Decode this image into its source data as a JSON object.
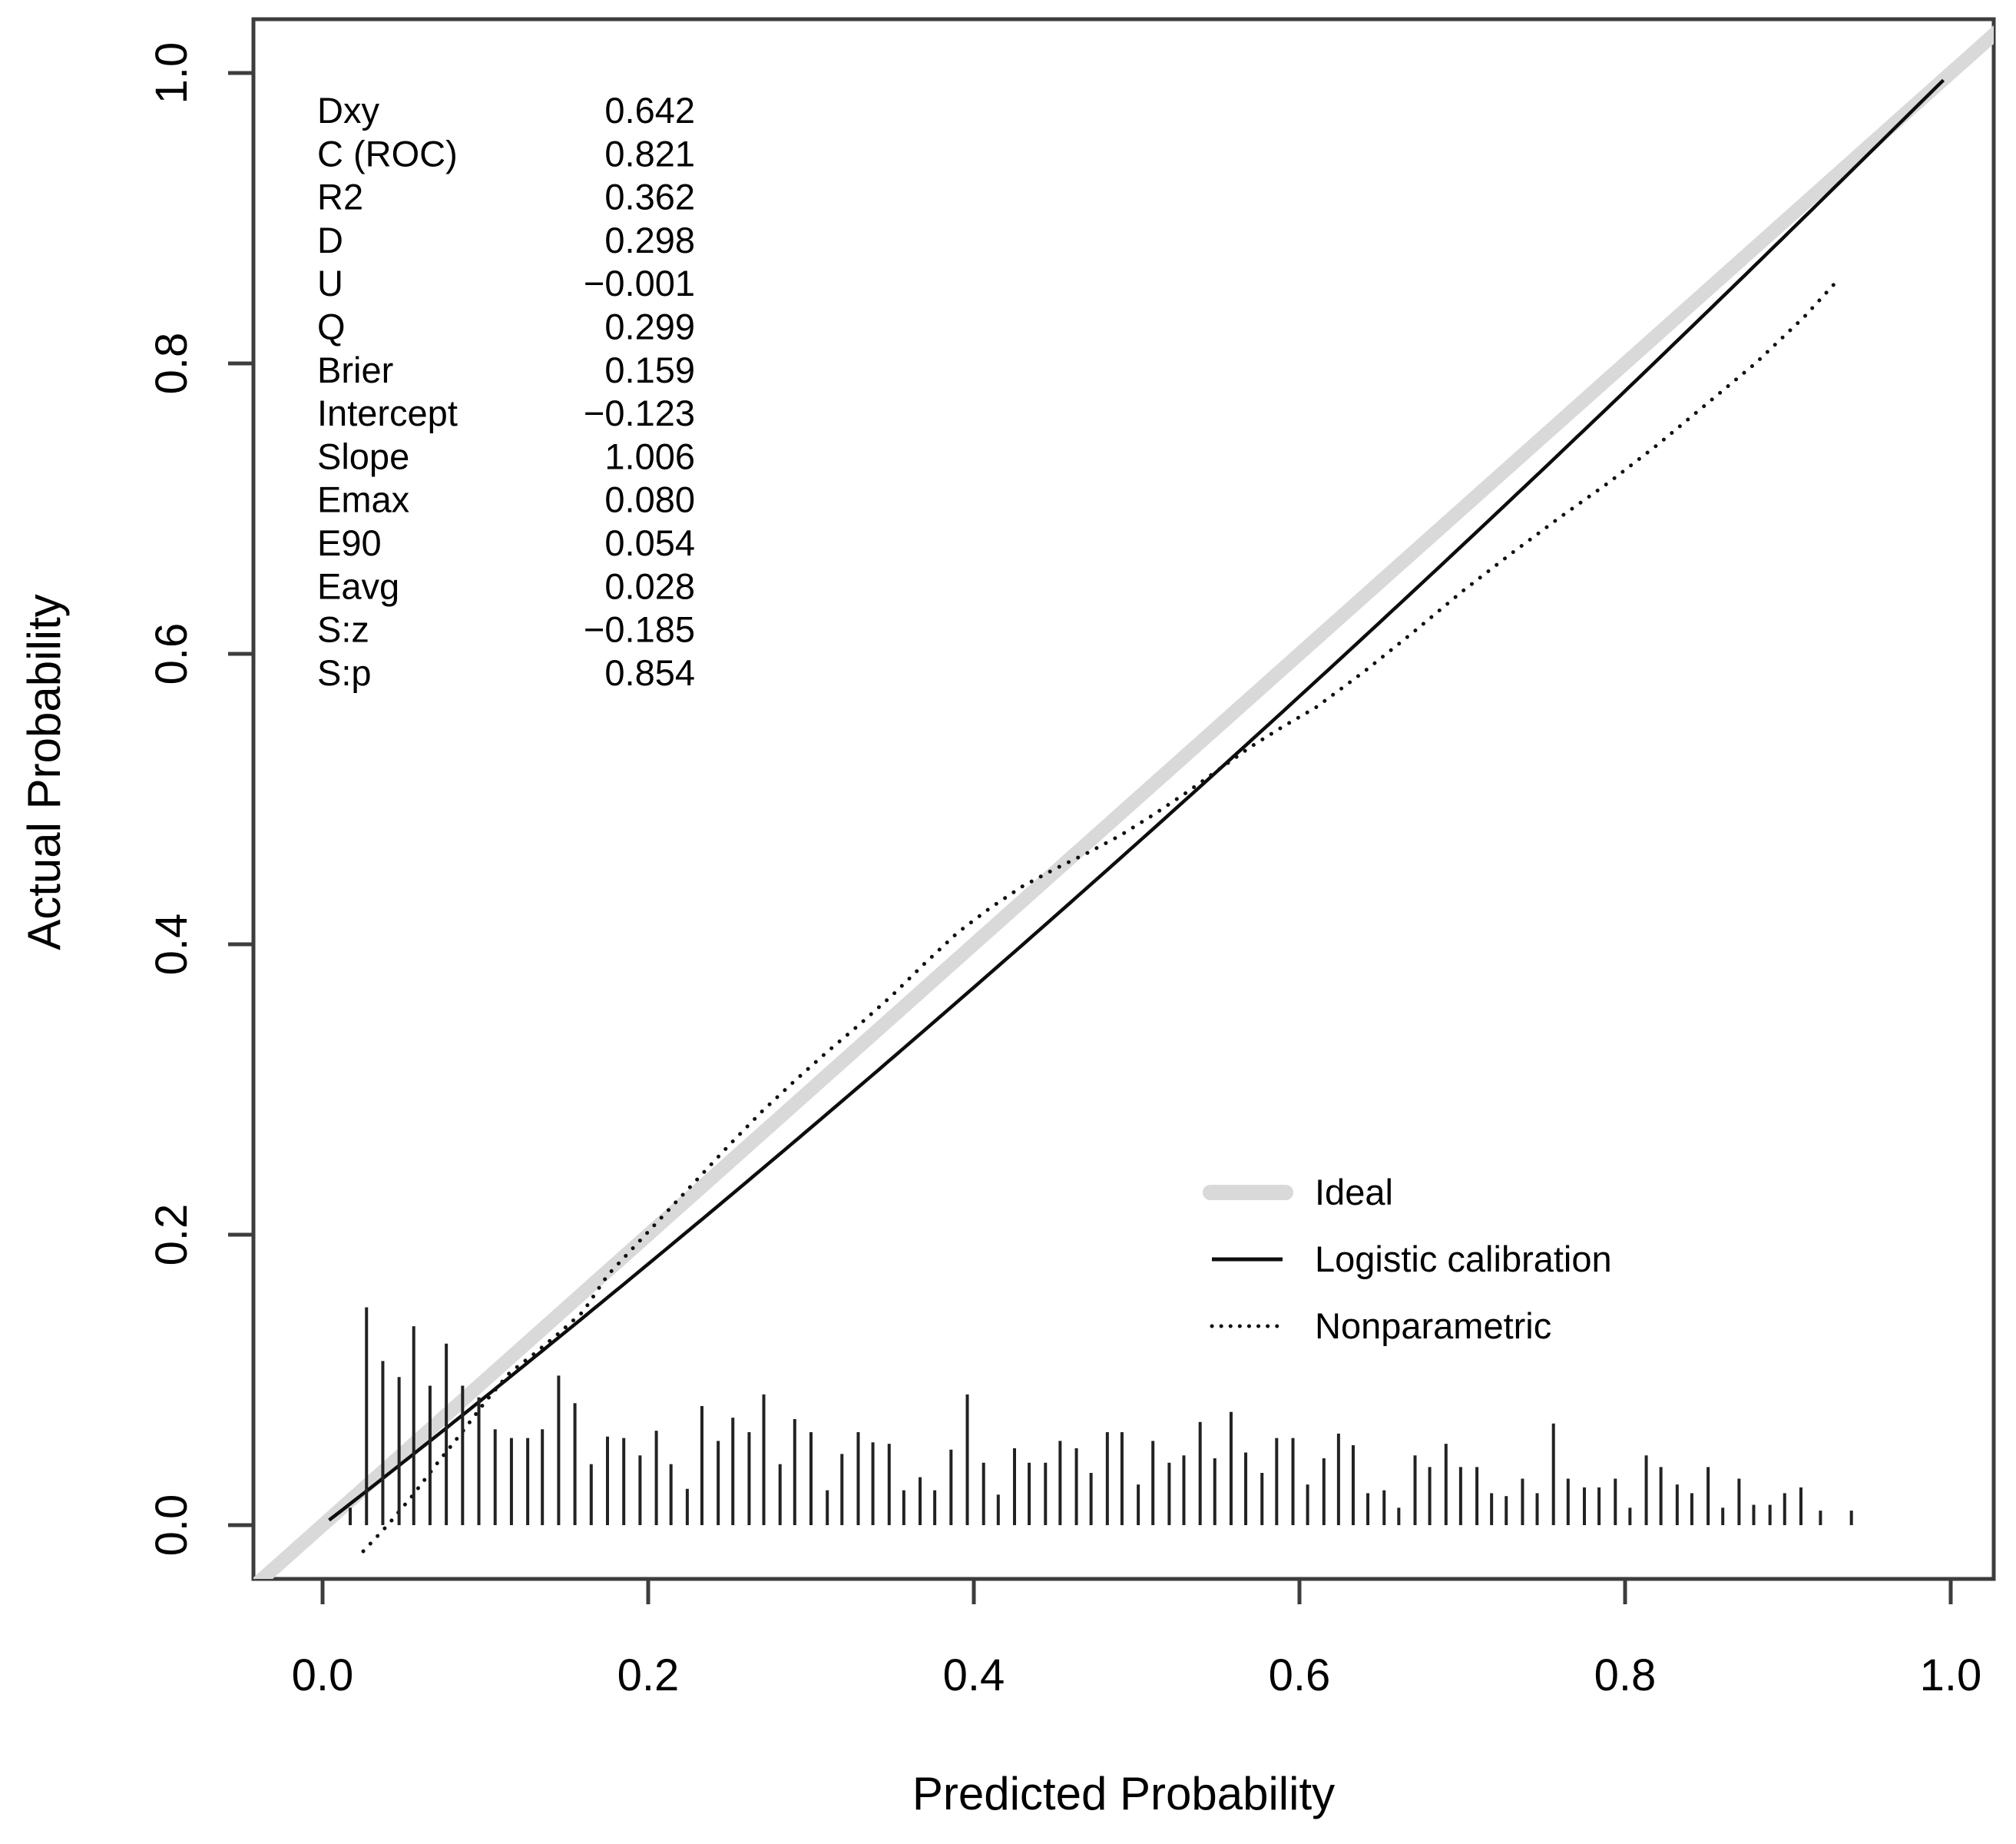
{
  "page": {
    "background": "#ffffff"
  },
  "colors": {
    "ideal_line": "#d9d9d9",
    "logistic_line": "#0d0d0d",
    "nonparametric_line": "#111111",
    "axis": "#3d3d3d",
    "text": "#000000",
    "rug": "#222222"
  },
  "chart_data": {
    "type": "line",
    "title": "",
    "xlabel": "Predicted Probability",
    "ylabel": "Actual Probability",
    "xlim": [
      -0.04,
      1.03
    ],
    "ylim": [
      -0.04,
      1.04
    ],
    "grid": false,
    "legend_position": "inside lower-right",
    "x_ticks": [
      0.0,
      0.2,
      0.4,
      0.6,
      0.8,
      1.0
    ],
    "x_tick_labels": [
      "0.0",
      "0.2",
      "0.4",
      "0.6",
      "0.8",
      "1.0"
    ],
    "y_ticks": [
      0.0,
      0.2,
      0.4,
      0.6,
      0.8,
      1.0
    ],
    "y_tick_labels": [
      "0.0",
      "0.2",
      "0.4",
      "0.6",
      "0.8",
      "1.0"
    ],
    "series": [
      {
        "name": "Ideal",
        "style": "thick-gray-solid",
        "role": "reference-diagonal",
        "points": [
          [
            -0.045,
            -0.045
          ],
          [
            1.035,
            1.035
          ]
        ]
      },
      {
        "name": "Logistic calibration",
        "style": "solid-black",
        "model": "actual = expit(intercept + slope * logit(predicted))",
        "intercept": -0.123,
        "slope": 1.006,
        "p_range": [
          0.004,
          0.9955
        ]
      },
      {
        "name": "Nonparametric",
        "style": "dotted-black",
        "points": [
          [
            0.025,
            -0.018
          ],
          [
            0.04,
            0.0
          ],
          [
            0.055,
            0.02
          ],
          [
            0.07,
            0.042
          ],
          [
            0.085,
            0.063
          ],
          [
            0.1,
            0.085
          ],
          [
            0.115,
            0.105
          ],
          [
            0.13,
            0.118
          ],
          [
            0.145,
            0.132
          ],
          [
            0.16,
            0.147
          ],
          [
            0.175,
            0.172
          ],
          [
            0.19,
            0.19
          ],
          [
            0.21,
            0.214
          ],
          [
            0.23,
            0.238
          ],
          [
            0.25,
            0.262
          ],
          [
            0.27,
            0.285
          ],
          [
            0.29,
            0.306
          ],
          [
            0.31,
            0.326
          ],
          [
            0.33,
            0.345
          ],
          [
            0.35,
            0.365
          ],
          [
            0.37,
            0.387
          ],
          [
            0.39,
            0.408
          ],
          [
            0.41,
            0.425
          ],
          [
            0.43,
            0.44
          ],
          [
            0.45,
            0.452
          ],
          [
            0.47,
            0.463
          ],
          [
            0.49,
            0.475
          ],
          [
            0.51,
            0.489
          ],
          [
            0.53,
            0.504
          ],
          [
            0.55,
            0.52
          ],
          [
            0.57,
            0.536
          ],
          [
            0.59,
            0.55
          ],
          [
            0.61,
            0.563
          ],
          [
            0.64,
            0.588
          ],
          [
            0.67,
            0.615
          ],
          [
            0.7,
            0.643
          ],
          [
            0.73,
            0.669
          ],
          [
            0.76,
            0.694
          ],
          [
            0.79,
            0.718
          ],
          [
            0.82,
            0.744
          ],
          [
            0.85,
            0.772
          ],
          [
            0.88,
            0.8
          ],
          [
            0.91,
            0.832
          ],
          [
            0.932,
            0.859
          ]
        ]
      }
    ],
    "rug": {
      "description": "distribution ticks of predicted probabilities along the bottom",
      "baseline_y": 0.0,
      "spikes": [
        [
          0.017,
          0.012
        ],
        [
          0.027,
          0.15
        ],
        [
          0.037,
          0.113
        ],
        [
          0.047,
          0.102
        ],
        [
          0.056,
          0.137
        ],
        [
          0.066,
          0.096
        ],
        [
          0.076,
          0.125
        ],
        [
          0.086,
          0.096
        ],
        [
          0.096,
          0.088
        ],
        [
          0.106,
          0.066
        ],
        [
          0.116,
          0.06
        ],
        [
          0.126,
          0.06
        ],
        [
          0.135,
          0.066
        ],
        [
          0.145,
          0.103
        ],
        [
          0.155,
          0.084
        ],
        [
          0.165,
          0.042
        ],
        [
          0.175,
          0.061
        ],
        [
          0.185,
          0.06
        ],
        [
          0.195,
          0.048
        ],
        [
          0.205,
          0.065
        ],
        [
          0.214,
          0.042
        ],
        [
          0.224,
          0.025
        ],
        [
          0.233,
          0.082
        ],
        [
          0.243,
          0.058
        ],
        [
          0.252,
          0.074
        ],
        [
          0.262,
          0.064
        ],
        [
          0.271,
          0.09
        ],
        [
          0.281,
          0.042
        ],
        [
          0.29,
          0.073
        ],
        [
          0.3,
          0.064
        ],
        [
          0.31,
          0.024
        ],
        [
          0.319,
          0.049
        ],
        [
          0.329,
          0.064
        ],
        [
          0.338,
          0.057
        ],
        [
          0.348,
          0.056
        ],
        [
          0.357,
          0.024
        ],
        [
          0.367,
          0.033
        ],
        [
          0.376,
          0.024
        ],
        [
          0.386,
          0.052
        ],
        [
          0.396,
          0.09
        ],
        [
          0.406,
          0.043
        ],
        [
          0.415,
          0.021
        ],
        [
          0.425,
          0.053
        ],
        [
          0.434,
          0.043
        ],
        [
          0.444,
          0.043
        ],
        [
          0.453,
          0.058
        ],
        [
          0.463,
          0.053
        ],
        [
          0.472,
          0.036
        ],
        [
          0.482,
          0.064
        ],
        [
          0.491,
          0.064
        ],
        [
          0.501,
          0.028
        ],
        [
          0.51,
          0.058
        ],
        [
          0.52,
          0.043
        ],
        [
          0.529,
          0.048
        ],
        [
          0.539,
          0.071
        ],
        [
          0.548,
          0.046
        ],
        [
          0.558,
          0.078
        ],
        [
          0.567,
          0.05
        ],
        [
          0.577,
          0.036
        ],
        [
          0.586,
          0.06
        ],
        [
          0.596,
          0.06
        ],
        [
          0.605,
          0.028
        ],
        [
          0.615,
          0.046
        ],
        [
          0.624,
          0.063
        ],
        [
          0.633,
          0.055
        ],
        [
          0.642,
          0.022
        ],
        [
          0.652,
          0.024
        ],
        [
          0.661,
          0.012
        ],
        [
          0.671,
          0.048
        ],
        [
          0.68,
          0.04
        ],
        [
          0.69,
          0.056
        ],
        [
          0.699,
          0.04
        ],
        [
          0.709,
          0.04
        ],
        [
          0.718,
          0.022
        ],
        [
          0.727,
          0.02
        ],
        [
          0.737,
          0.032
        ],
        [
          0.746,
          0.022
        ],
        [
          0.756,
          0.07
        ],
        [
          0.765,
          0.032
        ],
        [
          0.775,
          0.026
        ],
        [
          0.784,
          0.026
        ],
        [
          0.794,
          0.032
        ],
        [
          0.803,
          0.012
        ],
        [
          0.813,
          0.048
        ],
        [
          0.822,
          0.04
        ],
        [
          0.832,
          0.028
        ],
        [
          0.841,
          0.022
        ],
        [
          0.851,
          0.04
        ],
        [
          0.86,
          0.012
        ],
        [
          0.87,
          0.032
        ],
        [
          0.879,
          0.014
        ],
        [
          0.889,
          0.014
        ],
        [
          0.898,
          0.022
        ],
        [
          0.908,
          0.026
        ],
        [
          0.92,
          0.01
        ],
        [
          0.939,
          0.01
        ]
      ]
    },
    "annotations": {
      "stats": {
        "rows": [
          [
            "Dxy",
            "0.642"
          ],
          [
            "C (ROC)",
            "0.821"
          ],
          [
            "R2",
            "0.362"
          ],
          [
            "D",
            "0.298"
          ],
          [
            "U",
            "−0.001"
          ],
          [
            "Q",
            "0.299"
          ],
          [
            "Brier",
            "0.159"
          ],
          [
            "Intercept",
            "−0.123"
          ],
          [
            "Slope",
            "1.006"
          ],
          [
            "Emax",
            "0.080"
          ],
          [
            "E90",
            "0.054"
          ],
          [
            "Eavg",
            "0.028"
          ],
          [
            "S:z",
            "−0.185"
          ],
          [
            "S:p",
            "0.854"
          ]
        ]
      }
    }
  }
}
